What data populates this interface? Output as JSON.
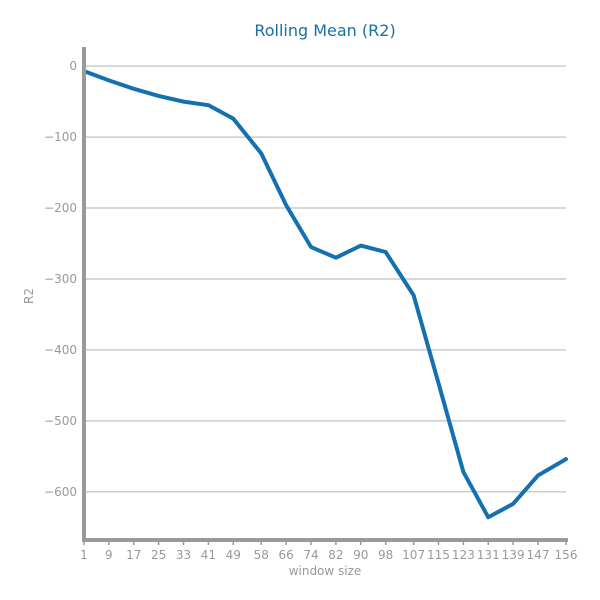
{
  "chart_data": {
    "type": "line",
    "title": "Rolling Mean (R2)",
    "xlabel": "window size",
    "ylabel": "R2",
    "x": [
      1,
      9,
      17,
      25,
      33,
      41,
      49,
      58,
      66,
      74,
      82,
      90,
      98,
      107,
      115,
      123,
      131,
      139,
      147,
      156
    ],
    "x_ticks": [
      "1",
      "9",
      "17",
      "25",
      "33",
      "41",
      "49",
      "58",
      "66",
      "74",
      "82",
      "90",
      "98",
      "107",
      "115",
      "123",
      "131",
      "139",
      "147",
      "156"
    ],
    "y_ticks": [
      0,
      -100,
      -200,
      -300,
      -400,
      -500,
      -600
    ],
    "y_tick_labels": [
      "0",
      "−100",
      "−200",
      "−300",
      "−400",
      "−500",
      "−600"
    ],
    "series": [
      {
        "color": "#1570b0",
        "values": [
          -7,
          -20,
          -32,
          -42,
          -50,
          -55,
          -74,
          -123,
          -196,
          -255,
          -270,
          -253,
          -262,
          -323,
          -447,
          -572,
          -636,
          -617,
          -577,
          -554
        ]
      }
    ],
    "xlim": [
      1,
      156
    ],
    "ylim": [
      -668,
      27
    ],
    "grid": true,
    "legend": "none"
  }
}
